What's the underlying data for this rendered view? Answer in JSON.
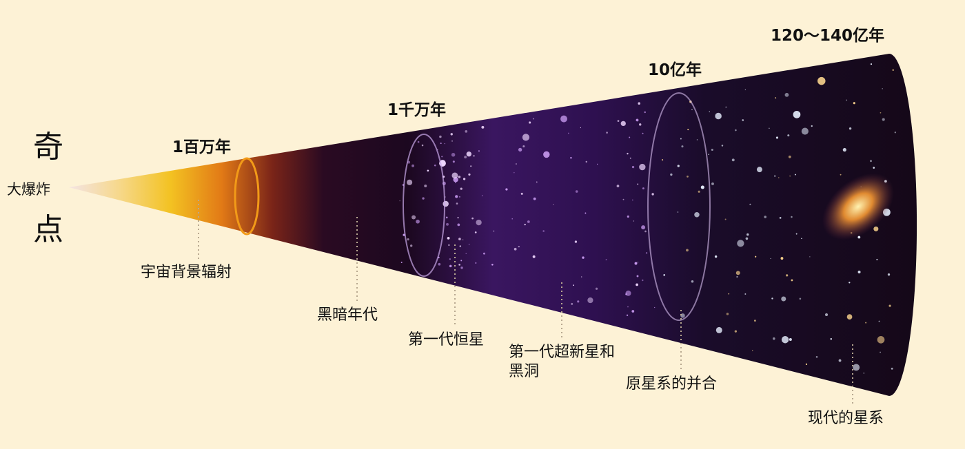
{
  "singularity": {
    "top_char": "奇",
    "bottom_char": "点",
    "label": "大爆炸"
  },
  "epochs": [
    "1百万年",
    "1千万年",
    "10亿年",
    "120～140亿年"
  ],
  "stages": [
    "宇宙背景辐射",
    "黑暗年代",
    "第一代恒星",
    "第一代超新星和黑洞",
    "原星系的并合",
    "现代的星系"
  ],
  "colors": {
    "background": "#fdf2d6",
    "early_glow": "#f7c62a",
    "ring_orange": "#f08a10",
    "dark_age": "#1c0820",
    "star_field": "#5a2a8a"
  }
}
